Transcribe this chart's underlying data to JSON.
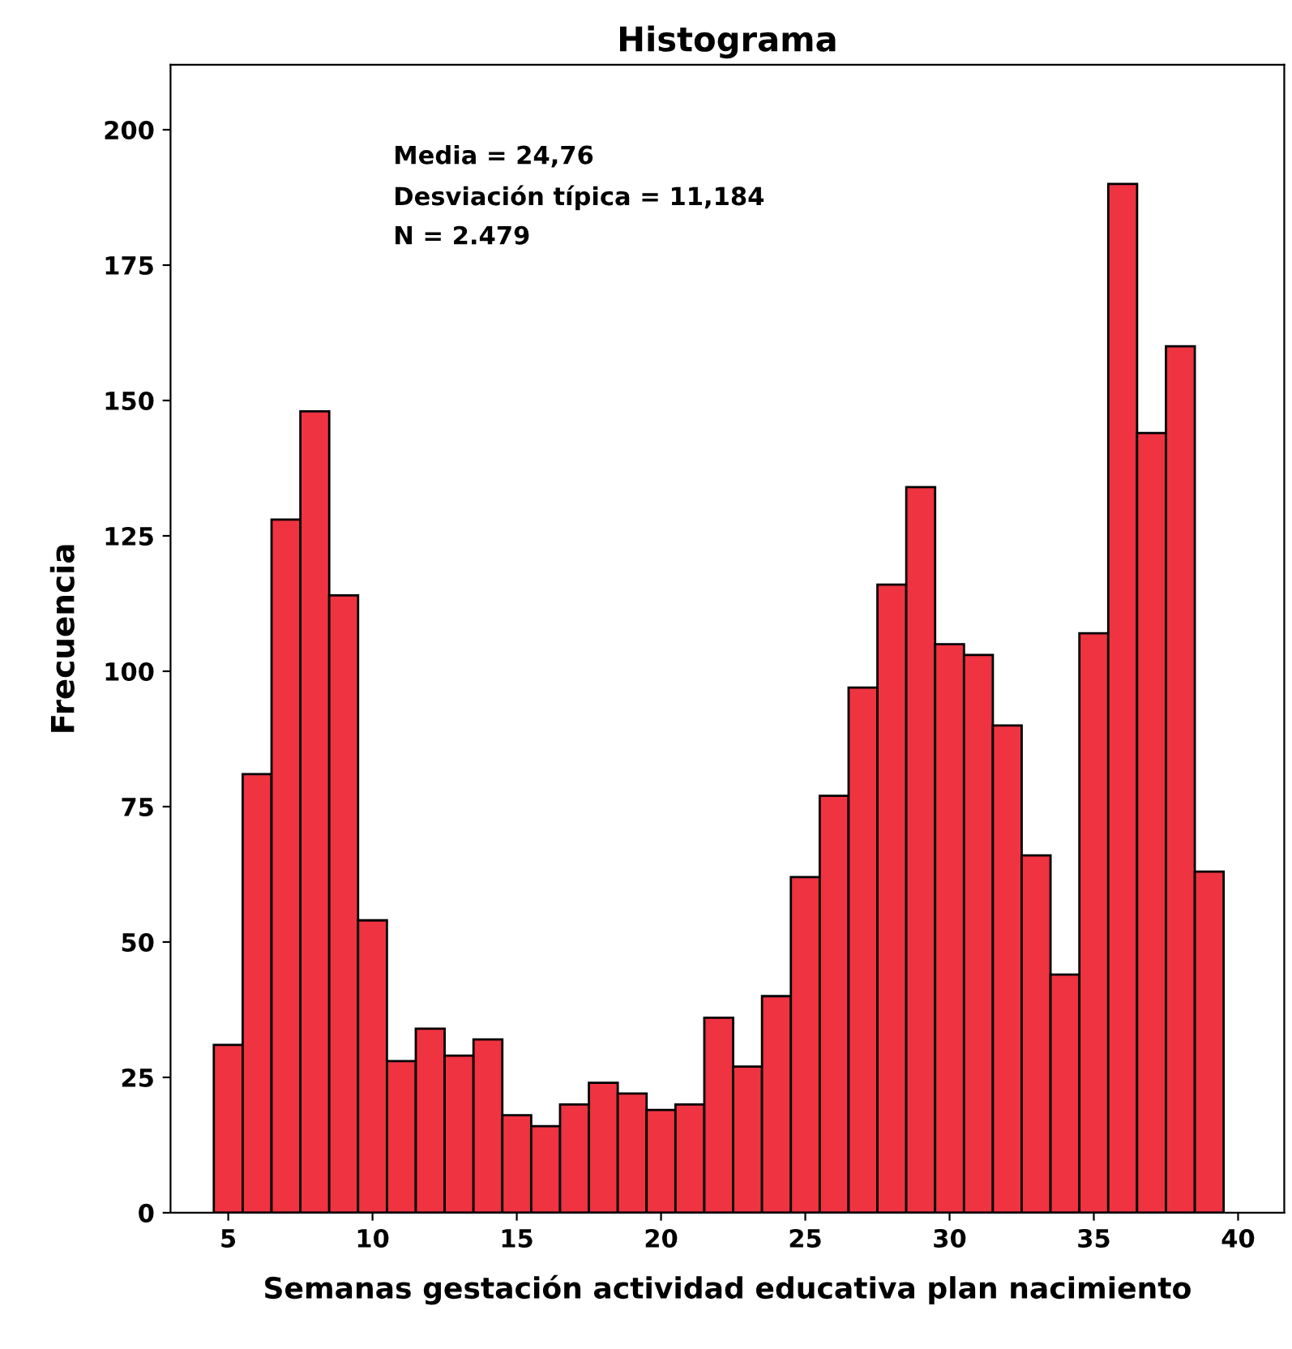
{
  "chart_data": {
    "type": "histogram",
    "title": "Histograma",
    "xlabel": "Semanas gestación actividad educativa plan nacimiento",
    "ylabel": "Frecuencia",
    "bins": [
      4.5,
      5.5,
      6.5,
      7.5,
      8.5,
      9.5,
      10.5,
      11.5,
      12.5,
      13.5,
      14.5,
      15.5,
      16.5,
      17.5,
      18.5,
      19.5,
      20.5,
      21.5,
      22.5,
      23.5,
      24.5,
      25.5,
      26.5,
      27.5,
      28.5,
      29.5,
      30.5,
      31.5,
      32.5,
      33.5,
      34.5,
      35.5,
      36.5,
      37.5,
      38.5,
      39.5
    ],
    "values": [
      31,
      81,
      128,
      148,
      114,
      54,
      28,
      34,
      29,
      32,
      18,
      16,
      20,
      24,
      22,
      19,
      20,
      36,
      27,
      40,
      62,
      77,
      97,
      116,
      134,
      105,
      103,
      90,
      66,
      44,
      107,
      190,
      144,
      160,
      63
    ],
    "color": "#ef3340",
    "annotations": [
      "Media = 24,76",
      "Desviación típica = 11,184",
      "N = 2.479"
    ],
    "xlim": [
      3,
      41.6
    ],
    "ylim": [
      0,
      212
    ],
    "xticks": [
      5,
      10,
      15,
      20,
      25,
      30,
      35,
      40
    ],
    "yticks": [
      0,
      25,
      50,
      75,
      100,
      125,
      150,
      175,
      200
    ],
    "grid": false,
    "legend": false
  }
}
